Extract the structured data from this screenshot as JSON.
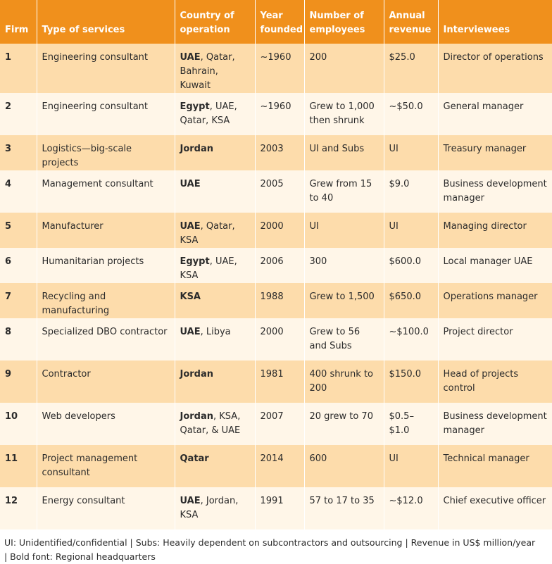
{
  "table": {
    "header": [
      "Firm",
      "Type of services",
      "Country of operation",
      "Year founded",
      "Number of employees",
      "Annual revenue",
      "Interviewees"
    ],
    "rows": [
      [
        "1",
        "Engineering consultant",
        {
          "bold": "UAE",
          "rest": ", Qatar, Bahrain, Kuwait"
        },
        "~1960",
        "200",
        "$25.0",
        "Director of operations"
      ],
      [
        "2",
        "Engineering consultant",
        {
          "bold": "Egypt",
          "rest": ", UAE, Qatar, KSA"
        },
        "~1960",
        "Grew to 1,000 then shrunk",
        "~$50.0",
        "General manager"
      ],
      [
        "3",
        "Logistics—big-scale projects",
        {
          "bold": "Jordan"
        },
        "2003",
        "UI and Subs",
        "UI",
        "Treasury manager"
      ],
      [
        "4",
        "Management consultant",
        {
          "bold": "UAE"
        },
        "2005",
        "Grew from 15 to 40",
        "$9.0",
        "Business development manager"
      ],
      [
        "5",
        "Manufacturer",
        {
          "bold": "UAE",
          "rest": ", Qatar, KSA"
        },
        "2000",
        "UI",
        "UI",
        "Managing director"
      ],
      [
        "6",
        "Humanitarian projects",
        {
          "bold": "Egypt",
          "rest": ", UAE, KSA"
        },
        "2006",
        "300",
        "$600.0",
        "Local manager UAE"
      ],
      [
        "7",
        "Recycling and manufacturing",
        {
          "bold": "KSA"
        },
        "1988",
        "Grew to 1,500",
        "$650.0",
        "Operations manager"
      ],
      [
        "8",
        "Specialized DBO contractor",
        {
          "bold": "UAE",
          "rest": ", Libya"
        },
        "2000",
        "Grew to 56 and Subs",
        "~$100.0",
        "Project director"
      ],
      [
        "9",
        "Contractor",
        {
          "bold": "Jordan"
        },
        "1981",
        "400 shrunk to 200",
        "$150.0",
        "Head of projects control"
      ],
      [
        "10",
        "Web developers",
        {
          "bold": "Jordan",
          "rest": ", KSA, Qatar, & UAE"
        },
        "2007",
        "20 grew to 70",
        "$0.5–$1.0",
        "Business development manager"
      ],
      [
        "11",
        "Project management consultant",
        {
          "bold": "Qatar"
        },
        "2014",
        "600",
        "UI",
        "Technical manager"
      ],
      [
        "12",
        "Energy consultant",
        {
          "bold": "UAE",
          "rest": ", Jordan, KSA"
        },
        "1991",
        "57 to 17 to 35",
        "~$12.0",
        "Chief executive officer"
      ]
    ]
  },
  "footnote": "UI: Unidentified/confidential | Subs: Heavily dependent on subcontractors and outsourcing | Revenue in US$ million/year | Bold font: Regional headquarters"
}
